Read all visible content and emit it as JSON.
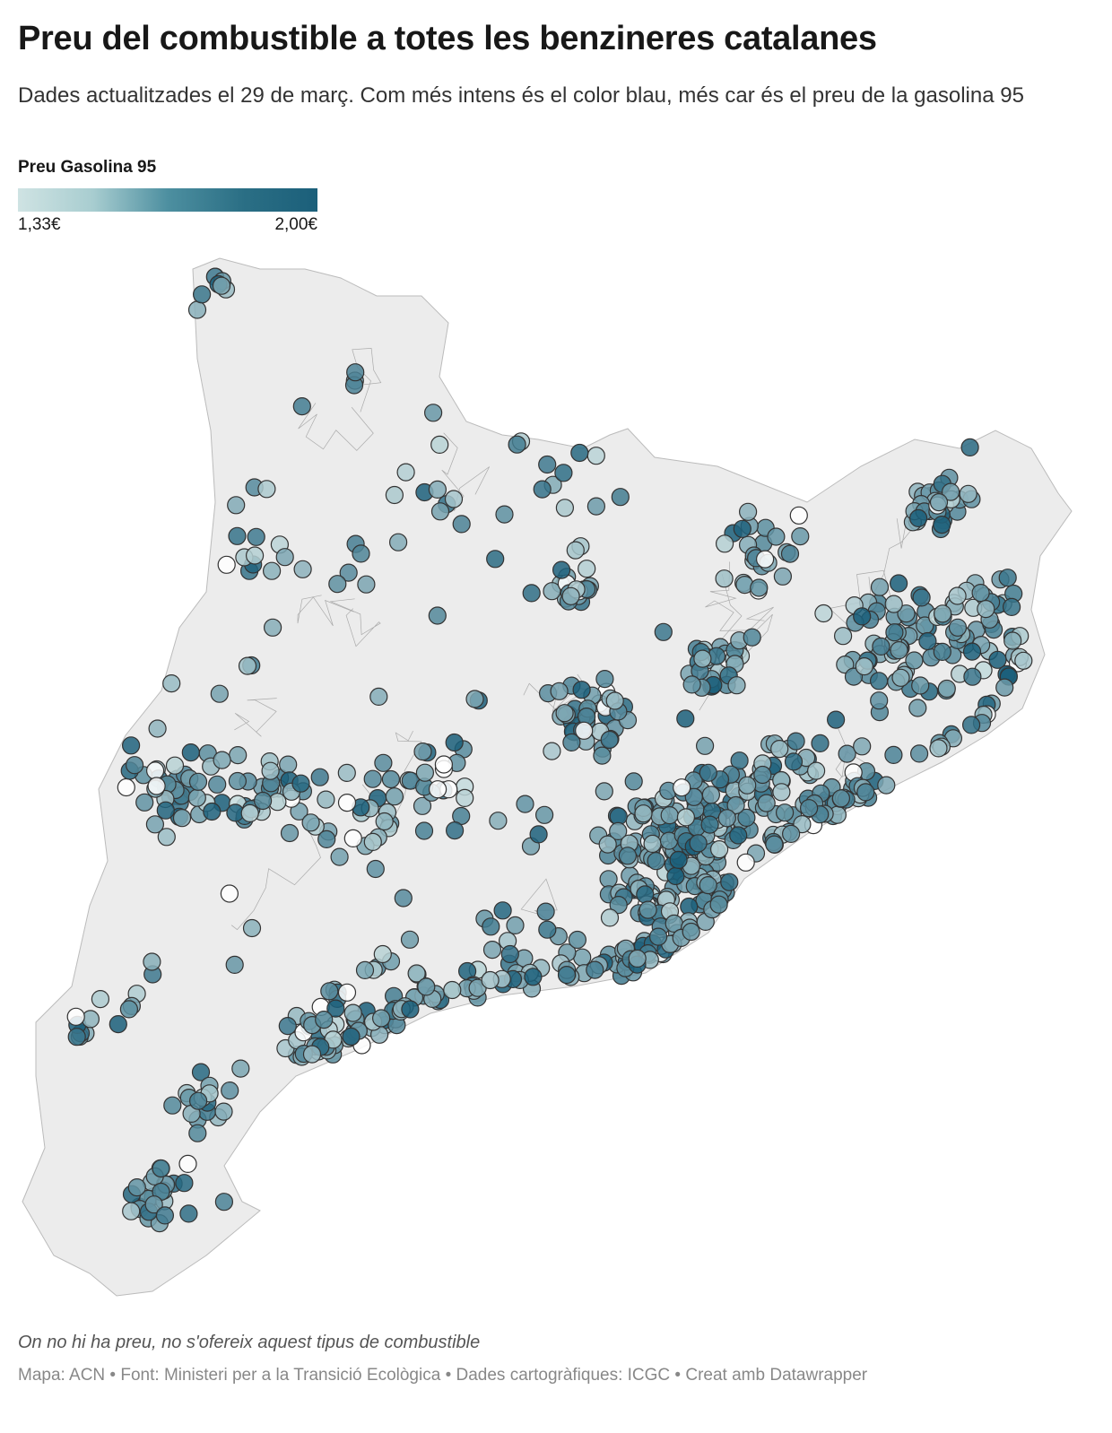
{
  "header": {
    "title": "Preu del combustible a totes les benzineres catalanes",
    "subtitle": "Dades actualitzades el 29 de març. Com més intens és el color blau, més car és el preu de la gasolina 95"
  },
  "legend": {
    "title": "Preu Gasolina 95",
    "min_label": "1,33€",
    "max_label": "2,00€",
    "min_value": 1.33,
    "max_value": 2.0,
    "color_low": "#cfe3e3",
    "color_high": "#1b5f7a"
  },
  "map": {
    "region": "Catalunya",
    "land_color": "#ececec",
    "border_color": "#999999",
    "no_price_color": "#ffffff"
  },
  "footer": {
    "note": "On no hi ha preu, no s'ofereix aquest tipus de combustible",
    "credit": "Mapa: ACN • Font: Ministeri per a la Transició Ecològica • Dades cartogràfiques: ICGC  • Creat amb Datawrapper"
  }
}
